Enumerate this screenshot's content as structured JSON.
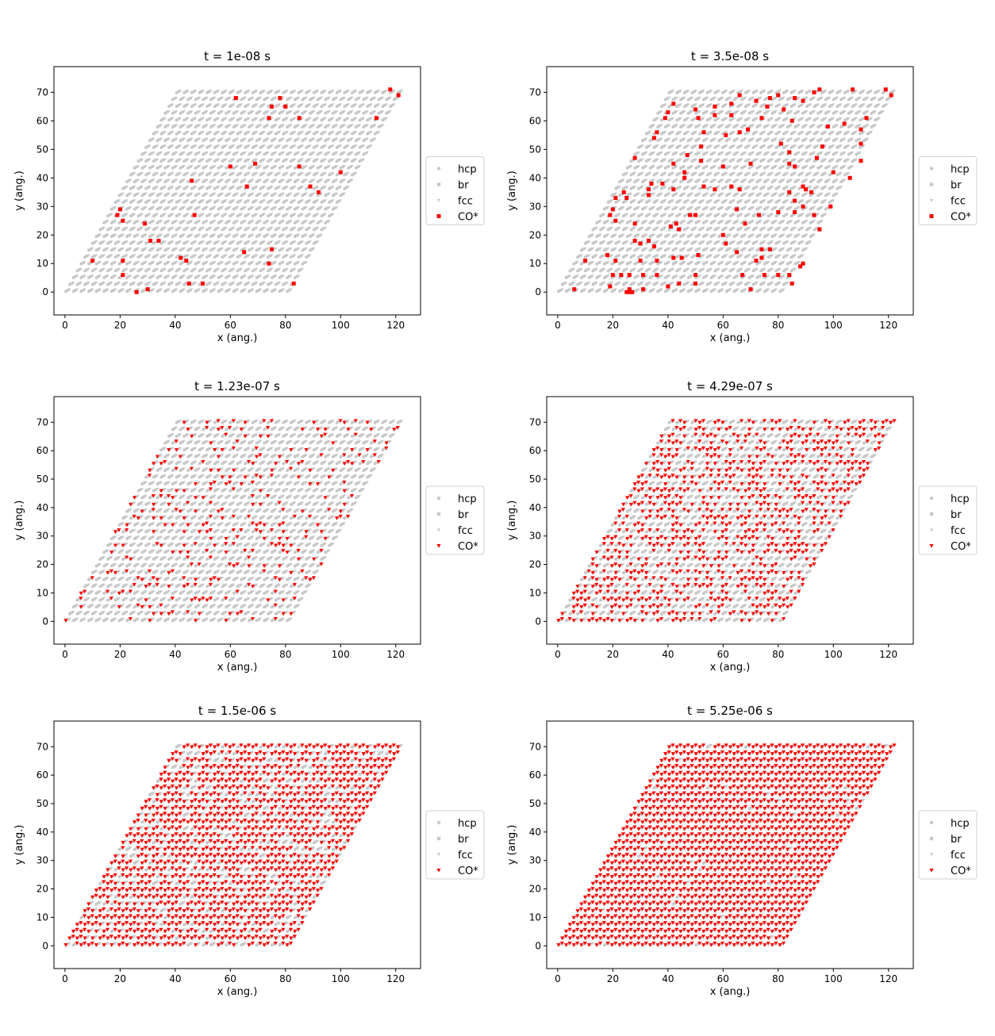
{
  "figure": {
    "xlabel": "x (ang.)",
    "ylabel": "y (ang.)"
  },
  "legend": [
    "hcp",
    "br",
    "fcc",
    "CO*"
  ],
  "colors": {
    "lattice": "#c8c8c8",
    "adsorbate": "#ff0000",
    "axes": "#000000"
  },
  "chart_data": [
    {
      "type": "scatter",
      "title": "t = 1e-08 s",
      "xlim": [
        -4,
        129
      ],
      "ylim": [
        -8,
        79
      ],
      "xticks": [
        0,
        20,
        40,
        60,
        80,
        100,
        120
      ],
      "yticks": [
        0,
        10,
        20,
        30,
        40,
        50,
        60,
        70
      ],
      "lattice": {
        "origin": [
          0,
          0
        ],
        "a": [
          2.77,
          0
        ],
        "b": [
          1.385,
          2.4
        ],
        "nx": 30,
        "ny": 30,
        "sites": [
          "hcp",
          "br",
          "fcc"
        ]
      },
      "co_marker": "square",
      "co_points": [
        [
          62,
          68
        ],
        [
          78,
          68
        ],
        [
          80,
          65
        ],
        [
          75,
          65
        ],
        [
          74,
          61
        ],
        [
          85,
          61
        ],
        [
          113,
          61
        ],
        [
          118,
          71
        ],
        [
          121,
          69
        ],
        [
          60,
          44
        ],
        [
          69,
          45
        ],
        [
          85,
          44
        ],
        [
          100,
          42
        ],
        [
          46,
          39
        ],
        [
          66,
          37
        ],
        [
          89,
          37
        ],
        [
          92,
          35
        ],
        [
          47,
          27
        ],
        [
          20,
          29
        ],
        [
          19,
          27
        ],
        [
          21,
          25
        ],
        [
          29,
          24
        ],
        [
          31,
          18
        ],
        [
          34,
          18
        ],
        [
          75,
          15
        ],
        [
          65,
          14
        ],
        [
          42,
          12
        ],
        [
          44,
          11
        ],
        [
          10,
          11
        ],
        [
          21,
          11
        ],
        [
          74,
          10
        ],
        [
          21,
          6
        ],
        [
          45,
          3
        ],
        [
          50,
          3
        ],
        [
          83,
          3
        ],
        [
          26,
          0
        ],
        [
          30,
          1
        ]
      ]
    },
    {
      "type": "scatter",
      "title": "t = 3.5e-08 s",
      "xlim": [
        -4,
        129
      ],
      "ylim": [
        -8,
        79
      ],
      "xticks": [
        0,
        20,
        40,
        60,
        80,
        100,
        120
      ],
      "yticks": [
        0,
        10,
        20,
        30,
        40,
        50,
        60,
        70
      ],
      "lattice": {
        "origin": [
          0,
          0
        ],
        "a": [
          2.77,
          0
        ],
        "b": [
          1.385,
          2.4
        ],
        "nx": 30,
        "ny": 30,
        "sites": [
          "hcp",
          "br",
          "fcc"
        ]
      },
      "co_marker": "square",
      "co_points": [
        [
          95,
          71
        ],
        [
          93,
          70
        ],
        [
          107,
          71
        ],
        [
          119,
          71
        ],
        [
          121,
          69
        ],
        [
          66,
          69
        ],
        [
          72,
          67
        ],
        [
          77,
          68
        ],
        [
          80,
          69
        ],
        [
          86,
          68
        ],
        [
          89,
          67
        ],
        [
          42,
          66
        ],
        [
          50,
          64
        ],
        [
          57,
          65
        ],
        [
          63,
          66
        ],
        [
          76,
          65
        ],
        [
          82,
          64
        ],
        [
          40,
          63
        ],
        [
          39,
          61
        ],
        [
          51,
          61
        ],
        [
          57,
          62
        ],
        [
          63,
          62
        ],
        [
          74,
          61
        ],
        [
          85,
          60
        ],
        [
          112,
          61
        ],
        [
          110,
          57
        ],
        [
          69,
          57
        ],
        [
          98,
          58
        ],
        [
          104,
          59
        ],
        [
          36,
          56
        ],
        [
          35,
          54
        ],
        [
          53,
          56
        ],
        [
          61,
          55
        ],
        [
          66,
          56
        ],
        [
          81,
          52
        ],
        [
          96,
          51
        ],
        [
          110,
          52
        ],
        [
          47,
          48
        ],
        [
          52,
          51
        ],
        [
          84,
          49
        ],
        [
          94,
          47
        ],
        [
          110,
          46
        ],
        [
          28,
          47
        ],
        [
          42,
          45
        ],
        [
          52,
          46
        ],
        [
          60,
          44
        ],
        [
          70,
          45
        ],
        [
          84,
          45
        ],
        [
          86,
          44
        ],
        [
          100,
          42
        ],
        [
          106,
          40
        ],
        [
          46,
          40
        ],
        [
          46,
          42
        ],
        [
          34,
          38
        ],
        [
          33,
          36
        ],
        [
          38,
          38
        ],
        [
          63,
          37
        ],
        [
          66,
          36
        ],
        [
          89,
          37
        ],
        [
          90,
          36
        ],
        [
          92,
          35
        ],
        [
          53,
          37
        ],
        [
          57,
          36
        ],
        [
          42,
          36
        ],
        [
          21,
          33
        ],
        [
          24,
          35
        ],
        [
          25,
          33
        ],
        [
          33,
          34
        ],
        [
          84,
          35
        ],
        [
          86,
          32
        ],
        [
          89,
          30
        ],
        [
          65,
          29
        ],
        [
          80,
          28
        ],
        [
          73,
          27
        ],
        [
          86,
          28
        ],
        [
          99,
          30
        ],
        [
          19,
          27
        ],
        [
          20,
          29
        ],
        [
          21,
          25
        ],
        [
          28,
          24
        ],
        [
          48,
          27
        ],
        [
          50,
          27
        ],
        [
          68,
          24
        ],
        [
          93,
          27
        ],
        [
          95,
          22
        ],
        [
          41,
          23
        ],
        [
          43,
          24
        ],
        [
          44,
          22
        ],
        [
          60,
          20
        ],
        [
          28,
          18
        ],
        [
          30,
          17
        ],
        [
          33,
          18
        ],
        [
          35,
          16
        ],
        [
          42,
          12
        ],
        [
          45,
          12
        ],
        [
          51,
          13
        ],
        [
          61,
          17
        ],
        [
          74,
          15
        ],
        [
          77,
          15
        ],
        [
          72,
          11
        ],
        [
          74,
          12
        ],
        [
          65,
          14
        ],
        [
          18,
          13
        ],
        [
          30,
          11
        ],
        [
          36,
          11
        ],
        [
          10,
          11
        ],
        [
          21,
          11
        ],
        [
          89,
          10
        ],
        [
          88,
          9
        ],
        [
          31,
          6
        ],
        [
          26,
          6
        ],
        [
          36,
          6
        ],
        [
          50,
          6
        ],
        [
          67,
          6
        ],
        [
          75,
          6
        ],
        [
          80,
          6
        ],
        [
          84,
          6
        ],
        [
          23,
          6
        ],
        [
          44,
          3
        ],
        [
          50,
          3
        ],
        [
          85,
          3
        ],
        [
          6,
          1
        ],
        [
          26,
          1
        ],
        [
          25,
          0
        ],
        [
          27,
          0
        ],
        [
          26,
          0
        ],
        [
          31,
          1
        ],
        [
          70,
          1
        ],
        [
          19,
          2
        ],
        [
          40,
          2
        ],
        [
          20,
          6
        ]
      ]
    },
    {
      "type": "scatter",
      "title": "t = 1.23e-07 s",
      "xlim": [
        -4,
        129
      ],
      "ylim": [
        -8,
        79
      ],
      "xticks": [
        0,
        20,
        40,
        60,
        80,
        100,
        120
      ],
      "yticks": [
        0,
        10,
        20,
        30,
        40,
        50,
        60,
        70
      ],
      "lattice": {
        "origin": [
          0,
          0
        ],
        "a": [
          2.77,
          0
        ],
        "b": [
          1.385,
          2.4
        ],
        "nx": 30,
        "ny": 30,
        "sites": [
          "hcp",
          "br",
          "fcc"
        ]
      },
      "co_marker": "triangle",
      "co_fraction": 0.18
    },
    {
      "type": "scatter",
      "title": "t = 4.29e-07 s",
      "xlim": [
        -4,
        129
      ],
      "ylim": [
        -8,
        79
      ],
      "xticks": [
        0,
        20,
        40,
        60,
        80,
        100,
        120
      ],
      "yticks": [
        0,
        10,
        20,
        30,
        40,
        50,
        60,
        70
      ],
      "lattice": {
        "origin": [
          0,
          0
        ],
        "a": [
          2.77,
          0
        ],
        "b": [
          1.385,
          2.4
        ],
        "nx": 30,
        "ny": 30,
        "sites": [
          "hcp",
          "br",
          "fcc"
        ]
      },
      "co_marker": "triangle",
      "co_fraction": 0.5
    },
    {
      "type": "scatter",
      "title": "t = 1.5e-06 s",
      "xlim": [
        -4,
        129
      ],
      "ylim": [
        -8,
        79
      ],
      "xticks": [
        0,
        20,
        40,
        60,
        80,
        100,
        120
      ],
      "yticks": [
        0,
        10,
        20,
        30,
        40,
        50,
        60,
        70
      ],
      "lattice": {
        "origin": [
          0,
          0
        ],
        "a": [
          2.77,
          0
        ],
        "b": [
          1.385,
          2.4
        ],
        "nx": 30,
        "ny": 30,
        "sites": [
          "hcp",
          "br",
          "fcc"
        ]
      },
      "co_marker": "triangle",
      "co_fraction": 0.78
    },
    {
      "type": "scatter",
      "title": "t = 5.25e-06 s",
      "xlim": [
        -4,
        129
      ],
      "ylim": [
        -8,
        79
      ],
      "xticks": [
        0,
        20,
        40,
        60,
        80,
        100,
        120
      ],
      "yticks": [
        0,
        10,
        20,
        30,
        40,
        50,
        60,
        70
      ],
      "lattice": {
        "origin": [
          0,
          0
        ],
        "a": [
          2.77,
          0
        ],
        "b": [
          1.385,
          2.4
        ],
        "nx": 30,
        "ny": 30,
        "sites": [
          "hcp",
          "br",
          "fcc"
        ]
      },
      "co_marker": "triangle",
      "co_fraction": 0.97
    }
  ]
}
